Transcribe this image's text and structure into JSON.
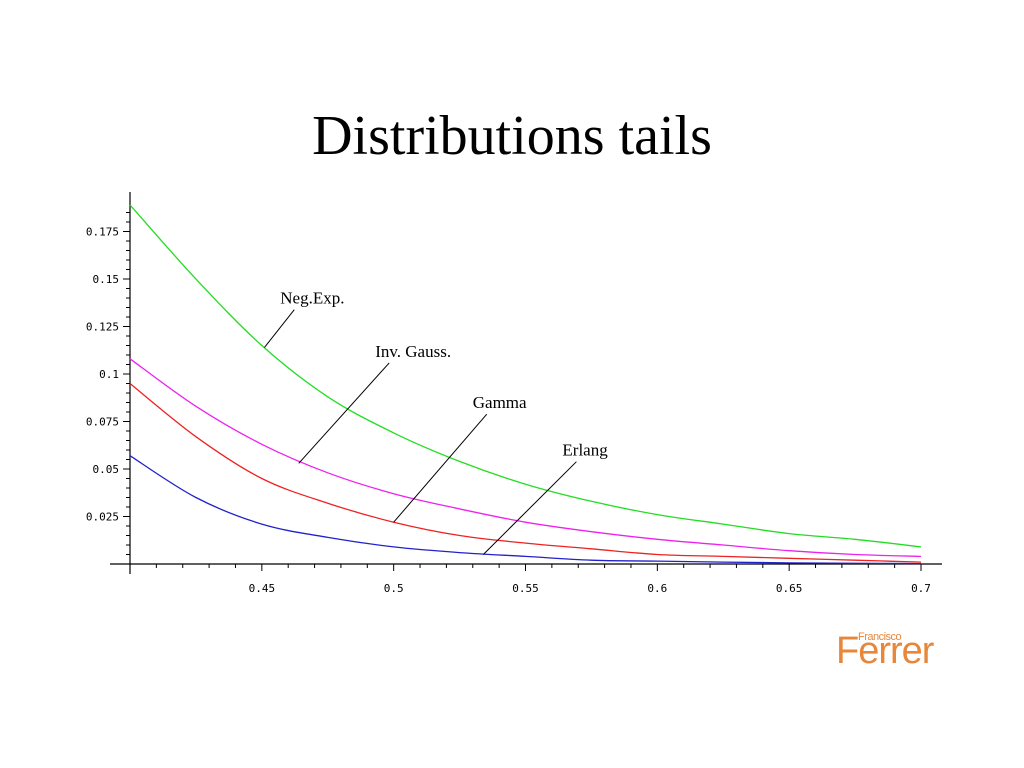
{
  "slide": {
    "title": "Distributions tails"
  },
  "logo": {
    "main": "Ferrer",
    "small": "Francisco"
  },
  "chart_data": {
    "type": "line",
    "title": "",
    "xlabel": "",
    "ylabel": "",
    "xlim": [
      0.4,
      0.7
    ],
    "ylim": [
      0,
      0.19
    ],
    "grid": false,
    "legend": "none",
    "x_ticks": [
      {
        "value": 0.45,
        "label": "0.45"
      },
      {
        "value": 0.5,
        "label": "0.5"
      },
      {
        "value": 0.55,
        "label": "0.55"
      },
      {
        "value": 0.6,
        "label": "0.6"
      },
      {
        "value": 0.65,
        "label": "0.65"
      },
      {
        "value": 0.7,
        "label": "0.7"
      }
    ],
    "y_ticks": [
      {
        "value": 0.025,
        "label": "0.025"
      },
      {
        "value": 0.05,
        "label": "0.05"
      },
      {
        "value": 0.075,
        "label": "0.075"
      },
      {
        "value": 0.1,
        "label": "0.1"
      },
      {
        "value": 0.125,
        "label": "0.125"
      },
      {
        "value": 0.15,
        "label": "0.15"
      },
      {
        "value": 0.175,
        "label": "0.175"
      }
    ],
    "x": [
      0.4,
      0.425,
      0.45,
      0.475,
      0.5,
      0.525,
      0.55,
      0.575,
      0.6,
      0.625,
      0.65,
      0.675,
      0.7
    ],
    "series": [
      {
        "color": "#22dd22",
        "values": [
          0.189,
          0.15,
          0.115,
          0.088,
          0.069,
          0.054,
          0.042,
          0.033,
          0.026,
          0.021,
          0.016,
          0.013,
          0.009
        ]
      },
      {
        "color": "#ee22ee",
        "values": [
          0.108,
          0.083,
          0.063,
          0.048,
          0.037,
          0.029,
          0.022,
          0.017,
          0.013,
          0.01,
          0.007,
          0.005,
          0.004
        ]
      },
      {
        "color": "#ee2222",
        "values": [
          0.095,
          0.067,
          0.045,
          0.032,
          0.022,
          0.015,
          0.011,
          0.008,
          0.005,
          0.004,
          0.003,
          0.002,
          0.001
        ]
      },
      {
        "color": "#2222cc",
        "values": [
          0.057,
          0.035,
          0.021,
          0.014,
          0.009,
          0.006,
          0.004,
          0.002,
          0.0015,
          0.001,
          0.0006,
          0.0004,
          0.0002
        ]
      }
    ],
    "annotations": [
      {
        "text": "Neg.Exp.",
        "series": 0,
        "text_x": 0.457,
        "text_y": 0.137,
        "point_x": 0.451,
        "point_y": 0.114
      },
      {
        "text": "Inv. Gauss.",
        "series": 1,
        "text_x": 0.493,
        "text_y": 0.109,
        "point_x": 0.464,
        "point_y": 0.053
      },
      {
        "text": "Gamma",
        "series": 2,
        "text_x": 0.53,
        "text_y": 0.082,
        "point_x": 0.5,
        "point_y": 0.022
      },
      {
        "text": "Erlang",
        "series": 3,
        "text_x": 0.564,
        "text_y": 0.057,
        "point_x": 0.534,
        "point_y": 0.005
      }
    ]
  }
}
